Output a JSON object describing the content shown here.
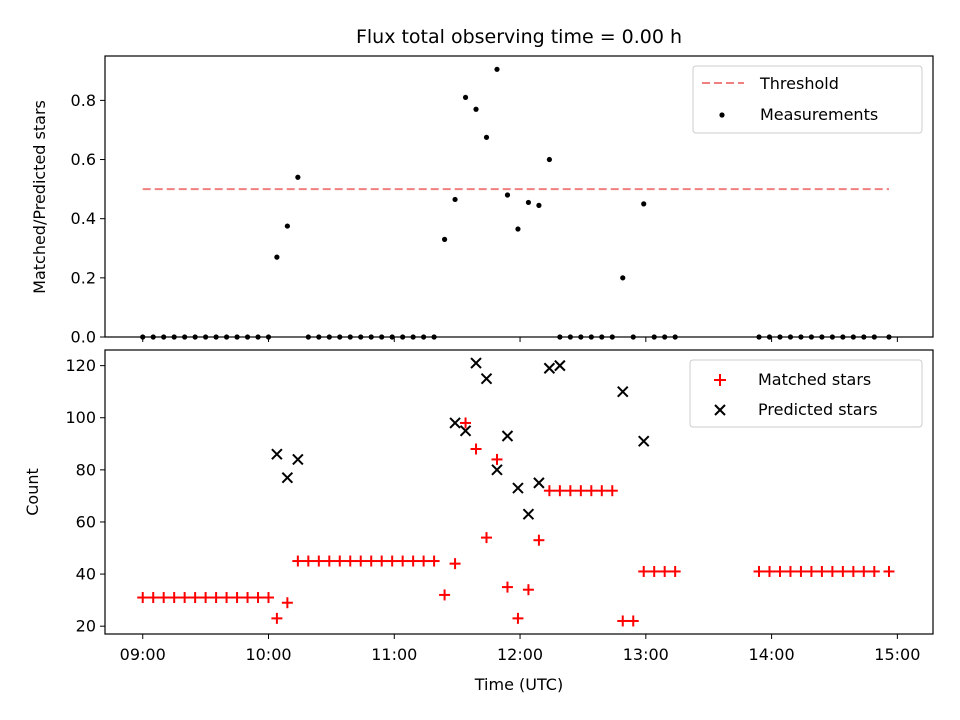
{
  "title": "Flux total observing time = 0.00 h",
  "chart_data": [
    {
      "type": "scatter",
      "panel": "top",
      "title": "Flux total observing time = 0.00 h",
      "xlabel": "",
      "ylabel": "Matched/Predicted stars",
      "xlim": [
        "08:42",
        "15:17"
      ],
      "ylim": [
        0,
        0.95
      ],
      "yticks": [
        "0.0",
        "0.2",
        "0.4",
        "0.6",
        "0.8"
      ],
      "legend": {
        "placement": "top-right",
        "entries": [
          "Threshold",
          "Measurements"
        ]
      },
      "threshold": {
        "name": "Threshold",
        "y": 0.5,
        "x_start": "09:00",
        "x_end": "14:56",
        "color": "#f08080"
      },
      "series": [
        {
          "name": "Measurements",
          "color": "#000000",
          "x": [
            "09:00",
            "09:05",
            "09:10",
            "09:15",
            "09:20",
            "09:25",
            "09:30",
            "09:35",
            "09:40",
            "09:45",
            "09:50",
            "09:55",
            "10:00",
            "10:04",
            "10:09",
            "10:14",
            "10:19",
            "10:24",
            "10:29",
            "10:34",
            "10:39",
            "10:44",
            "10:49",
            "10:54",
            "10:59",
            "11:04",
            "11:09",
            "11:14",
            "11:19",
            "11:24",
            "11:29",
            "11:34",
            "11:39",
            "11:44",
            "11:49",
            "11:54",
            "11:59",
            "12:04",
            "12:09",
            "12:14",
            "12:19",
            "12:24",
            "12:29",
            "12:34",
            "12:39",
            "12:44",
            "12:49",
            "12:54",
            "12:59",
            "13:04",
            "13:09",
            "13:14",
            "13:54",
            "13:59",
            "14:04",
            "14:09",
            "14:14",
            "14:19",
            "14:24",
            "14:29",
            "14:34",
            "14:39",
            "14:44",
            "14:49",
            "14:56"
          ],
          "y": [
            0,
            0,
            0,
            0,
            0,
            0,
            0,
            0,
            0,
            0,
            0,
            0,
            0,
            0.27,
            0.375,
            0.54,
            0,
            0,
            0,
            0,
            0,
            0,
            0,
            0,
            0,
            0,
            0,
            0,
            0,
            0.33,
            0.465,
            0.81,
            0.77,
            0.675,
            0.905,
            0.48,
            0.365,
            0.455,
            0.445,
            0.6,
            0,
            0,
            0,
            0,
            0,
            0,
            0.2,
            0,
            0.45,
            0,
            0,
            0,
            0,
            0,
            0,
            0,
            0,
            0,
            0,
            0,
            0,
            0,
            0,
            0,
            0
          ]
        }
      ]
    },
    {
      "type": "scatter",
      "panel": "bottom",
      "xlabel": "Time (UTC)",
      "ylabel": "Count",
      "xlim": [
        "08:42",
        "15:17"
      ],
      "ylim": [
        17,
        126
      ],
      "xticks": [
        "09:00",
        "10:00",
        "11:00",
        "12:00",
        "13:00",
        "14:00",
        "15:00"
      ],
      "yticks": [
        "20",
        "40",
        "60",
        "80",
        "100",
        "120"
      ],
      "legend": {
        "placement": "top-right",
        "entries": [
          "Matched stars",
          "Predicted stars"
        ]
      },
      "series": [
        {
          "name": "Matched stars",
          "marker": "plus",
          "color": "#ff0000",
          "x": [
            "09:00",
            "09:05",
            "09:10",
            "09:15",
            "09:20",
            "09:25",
            "09:30",
            "09:35",
            "09:40",
            "09:45",
            "09:50",
            "09:55",
            "10:00",
            "10:04",
            "10:09",
            "10:14",
            "10:19",
            "10:24",
            "10:29",
            "10:34",
            "10:39",
            "10:44",
            "10:49",
            "10:54",
            "10:59",
            "11:04",
            "11:09",
            "11:14",
            "11:19",
            "11:24",
            "11:29",
            "11:34",
            "11:39",
            "11:44",
            "11:49",
            "11:54",
            "11:59",
            "12:04",
            "12:09",
            "12:14",
            "12:19",
            "12:24",
            "12:29",
            "12:34",
            "12:39",
            "12:44",
            "12:49",
            "12:54",
            "12:59",
            "13:04",
            "13:09",
            "13:14",
            "13:54",
            "13:59",
            "14:04",
            "14:09",
            "14:14",
            "14:19",
            "14:24",
            "14:29",
            "14:34",
            "14:39",
            "14:44",
            "14:49",
            "14:56"
          ],
          "y": [
            31,
            31,
            31,
            31,
            31,
            31,
            31,
            31,
            31,
            31,
            31,
            31,
            31,
            23,
            29,
            45,
            45,
            45,
            45,
            45,
            45,
            45,
            45,
            45,
            45,
            45,
            45,
            45,
            45,
            32,
            44,
            98,
            88,
            54,
            84,
            35,
            23,
            34,
            53,
            72,
            72,
            72,
            72,
            72,
            72,
            72,
            22,
            22,
            41,
            41,
            41,
            41,
            41,
            41,
            41,
            41,
            41,
            41,
            41,
            41,
            41,
            41,
            41,
            41,
            41
          ]
        },
        {
          "name": "Predicted stars",
          "marker": "x",
          "color": "#000000",
          "x": [
            "10:04",
            "10:09",
            "10:14",
            "11:29",
            "11:34",
            "11:39",
            "11:44",
            "11:49",
            "11:54",
            "11:59",
            "12:04",
            "12:09",
            "12:14",
            "12:19",
            "12:49",
            "12:59"
          ],
          "y": [
            86,
            77,
            84,
            98,
            95,
            121,
            115,
            80,
            93,
            73,
            63,
            75,
            119,
            120,
            110,
            91
          ]
        }
      ]
    }
  ]
}
